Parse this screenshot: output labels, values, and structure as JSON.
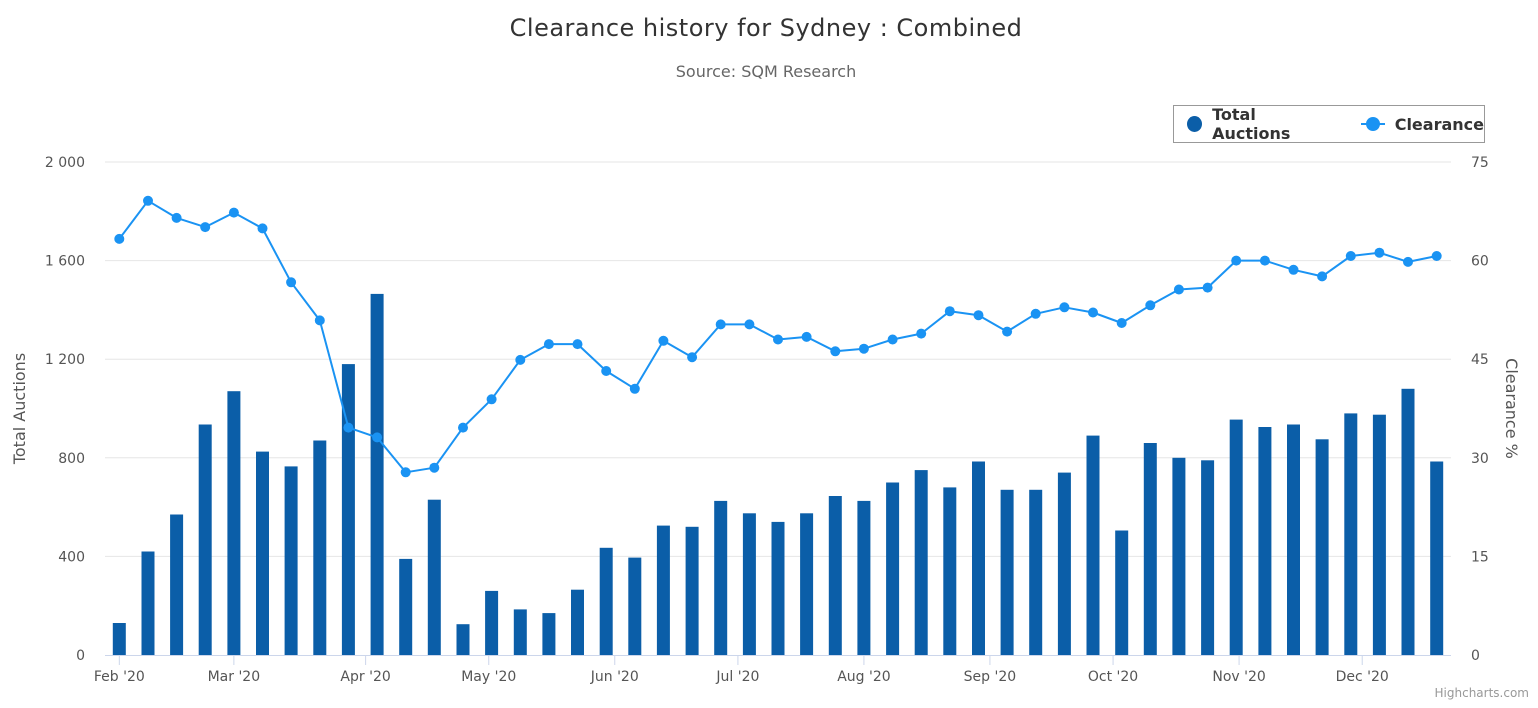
{
  "title": "Clearance history for Sydney : Combined",
  "subtitle": "Source: SQM Research",
  "credits": "Highcharts.com",
  "colors": {
    "bars": "#0b5ea8",
    "line": "#1a93f3",
    "grid": "#e6e6e6",
    "axis": "#ccd6eb"
  },
  "chart_data": {
    "type": "bar+line",
    "title": "Clearance history for Sydney : Combined",
    "subtitle": "Source: SQM Research",
    "xlabel": "",
    "ylabel": "Total Auctions",
    "y2label": "Clearance %",
    "ylim": [
      0,
      2000
    ],
    "y2lim": [
      0,
      75
    ],
    "yticks": [
      "0",
      "400",
      "800",
      "1 200",
      "1 600",
      "2 000"
    ],
    "y2ticks": [
      "0",
      "15",
      "30",
      "45",
      "60",
      "75"
    ],
    "xticks": [
      {
        "label": "Feb '20",
        "week": 0
      },
      {
        "label": "Mar '20",
        "week": 4
      },
      {
        "label": "Apr '20",
        "week": 8.6
      },
      {
        "label": "May '20",
        "week": 12.9
      },
      {
        "label": "Jun '20",
        "week": 17.3
      },
      {
        "label": "Jul '20",
        "week": 21.6
      },
      {
        "label": "Aug '20",
        "week": 26
      },
      {
        "label": "Sep '20",
        "week": 30.4
      },
      {
        "label": "Oct '20",
        "week": 34.7
      },
      {
        "label": "Nov '20",
        "week": 39.1
      },
      {
        "label": "Dec '20",
        "week": 43.4
      }
    ],
    "grid": true,
    "legend_position": "top-right",
    "series": [
      {
        "name": "Total Auctions",
        "type": "bar",
        "axis": "left",
        "values": [
          130,
          420,
          570,
          935,
          1070,
          825,
          765,
          870,
          1180,
          1465,
          390,
          630,
          125,
          260,
          185,
          170,
          265,
          435,
          395,
          525,
          520,
          625,
          575,
          540,
          575,
          645,
          625,
          700,
          750,
          680,
          785,
          670,
          670,
          740,
          890,
          505,
          860,
          800,
          790,
          955,
          925,
          935,
          875,
          980,
          975,
          1080,
          785
        ]
      },
      {
        "name": "Clearance",
        "type": "line",
        "axis": "right",
        "values": [
          63.3,
          69.1,
          66.5,
          65.1,
          67.3,
          64.9,
          56.7,
          50.9,
          34.6,
          33.1,
          27.8,
          28.5,
          34.6,
          38.9,
          44.9,
          47.3,
          47.3,
          43.2,
          40.5,
          47.8,
          45.3,
          50.3,
          50.3,
          48.0,
          48.4,
          46.2,
          46.6,
          48.0,
          48.9,
          52.3,
          51.7,
          49.2,
          51.9,
          52.9,
          52.1,
          50.5,
          53.2,
          55.6,
          55.9,
          60.0,
          60.0,
          58.6,
          57.6,
          60.7,
          61.2,
          59.8,
          60.7
        ]
      }
    ]
  }
}
